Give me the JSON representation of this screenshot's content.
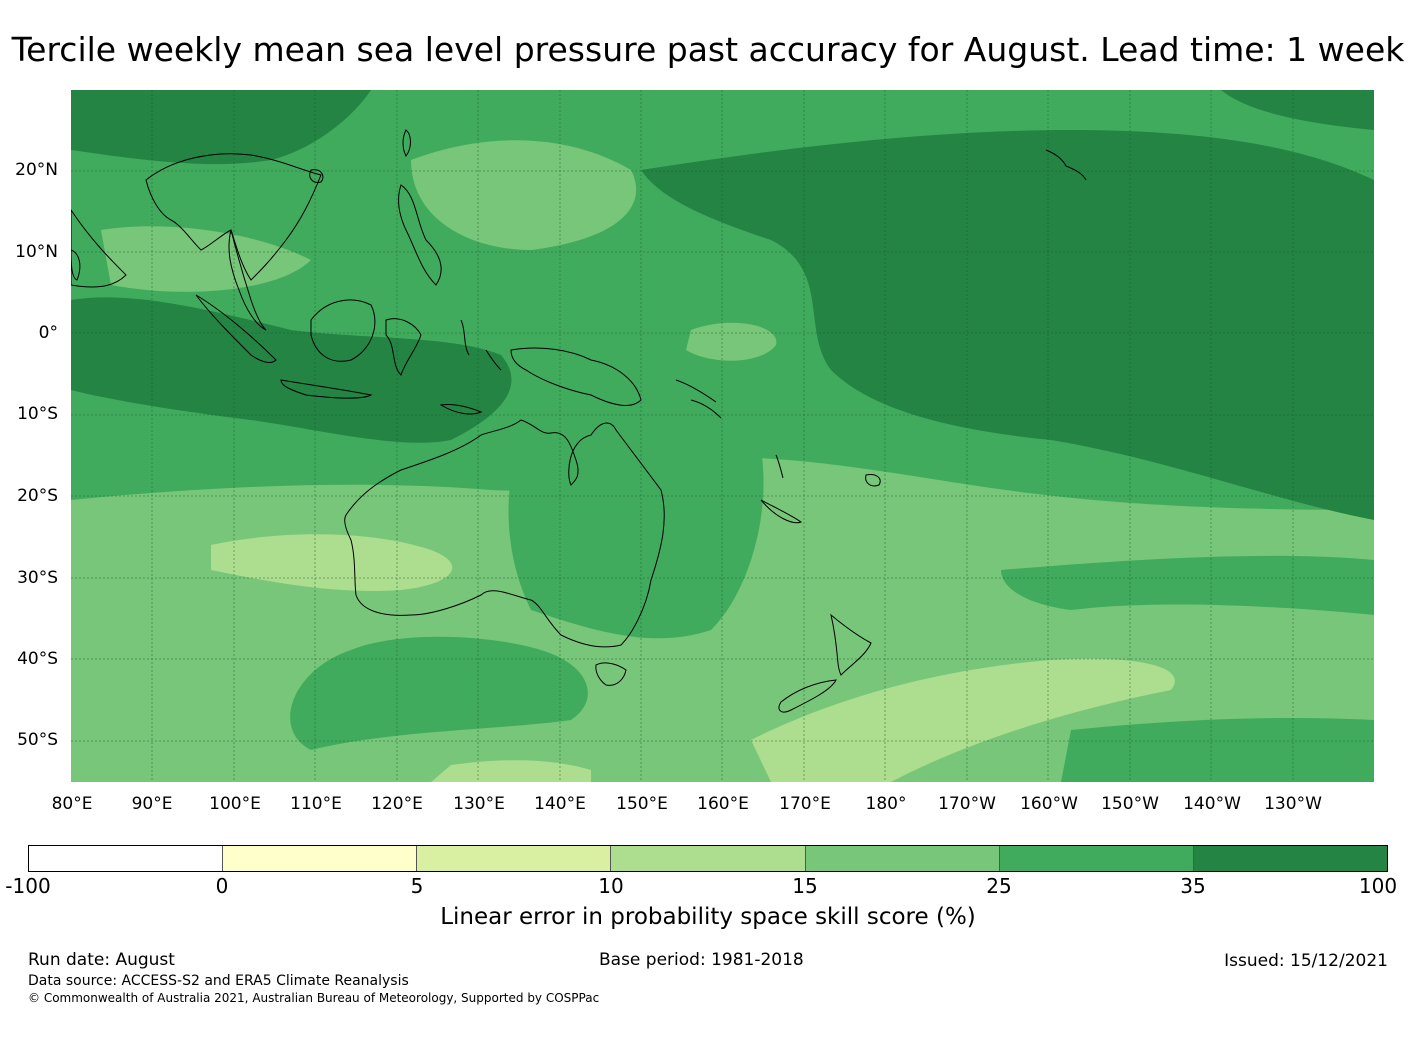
{
  "title": "Tercile weekly mean sea level pressure past accuracy for August. Lead time: 1 week",
  "map": {
    "lat_labels": [
      "20°N",
      "10°N",
      "0°",
      "10°S",
      "20°S",
      "30°S",
      "40°S",
      "50°S"
    ],
    "lon_labels": [
      "80°E",
      "90°E",
      "100°E",
      "110°E",
      "120°E",
      "130°E",
      "140°E",
      "150°E",
      "160°E",
      "170°E",
      "180°",
      "170°W",
      "160°W",
      "150°W",
      "140°W",
      "130°W"
    ],
    "extent": {
      "lon_min": 80,
      "lon_max": 240,
      "lat_min": -55,
      "lat_max": 30
    }
  },
  "colorbar": {
    "ticks": [
      "-100",
      "0",
      "5",
      "10",
      "15",
      "25",
      "35",
      "100"
    ],
    "colors": [
      "#ffffff",
      "#ffffcc",
      "#d9f0a3",
      "#addd8e",
      "#78c679",
      "#41ab5d",
      "#238443"
    ],
    "label": "Linear error in probability space skill score (%)"
  },
  "footer": {
    "run_date": "Run date: August",
    "base_period": "Base period: 1981-2018",
    "issued": "Issued: 15/12/2021",
    "data_source": "Data source: ACCESS-S2 and ERA5 Climate Reanalysis",
    "copyright": "© Commonwealth of Australia 2021, Australian Bureau of Meteorology, Supported by COSPPac"
  }
}
